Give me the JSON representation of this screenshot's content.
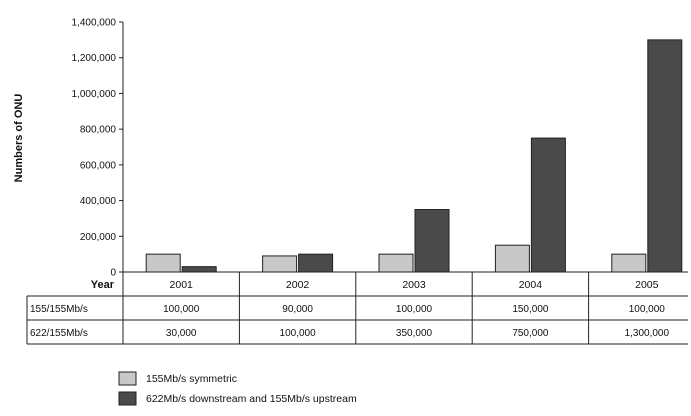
{
  "chart_data": {
    "type": "bar",
    "ylabel": "Numbers of ONU",
    "year_label": "Year",
    "categories": [
      "2001",
      "2002",
      "2003",
      "2004",
      "2005"
    ],
    "yticks": [
      "0",
      "200,000",
      "400,000",
      "600,000",
      "800,000",
      "1,000,000",
      "1,200,000",
      "1,400,000"
    ],
    "ylim": [
      0,
      1400000
    ],
    "grid": false,
    "series": [
      {
        "name": "155Mb/s symmetric",
        "row_label": "155/155Mb/s",
        "values": [
          100000,
          90000,
          100000,
          150000,
          100000
        ],
        "display": [
          "100,000",
          "90,000",
          "100,000",
          "150,000",
          "100,000"
        ],
        "color": "#c8c8c8"
      },
      {
        "name": "622Mb/s downstream and 155Mb/s upstream",
        "row_label": "622/155Mb/s",
        "values": [
          30000,
          100000,
          350000,
          750000,
          1300000
        ],
        "display": [
          "30,000",
          "100,000",
          "350,000",
          "750,000",
          "1,300,000"
        ],
        "color": "#4a4a4a"
      }
    ],
    "legend_position": "bottom-left"
  }
}
